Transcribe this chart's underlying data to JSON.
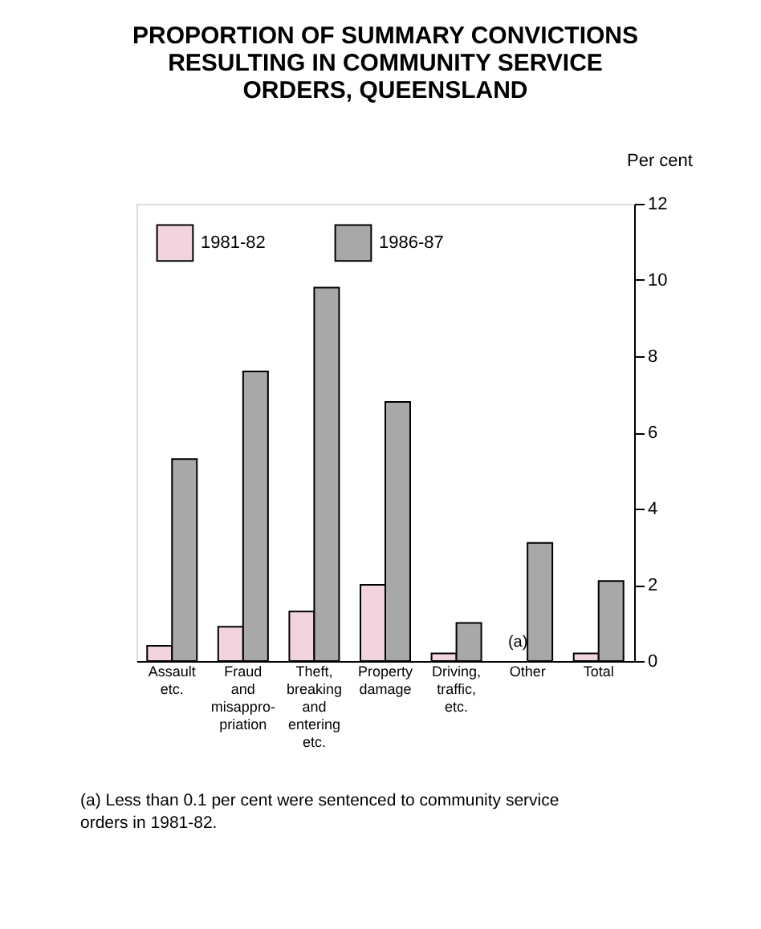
{
  "chart_data": {
    "type": "bar",
    "title": "PROPORTION OF SUMMARY CONVICTIONS RESULTING IN COMMUNITY SERVICE ORDERS, QUEENSLAND",
    "ylabel": "Per cent",
    "categories": [
      "Assault etc.",
      "Fraud and misappro- priation",
      "Theft, breaking and entering etc.",
      "Property damage",
      "Driving, traffic, etc.",
      "Other",
      "Total"
    ],
    "series": [
      {
        "name": "1981-82",
        "color": "#f2d4dc",
        "values": [
          0.4,
          0.9,
          1.3,
          2.0,
          0.2,
          null,
          0.2
        ]
      },
      {
        "name": "1986-87",
        "color": "#a8a8a8",
        "values": [
          5.3,
          7.6,
          9.8,
          6.8,
          1.0,
          3.1,
          2.1
        ]
      }
    ],
    "ylim": [
      0,
      12
    ],
    "yticks": [
      0,
      2,
      4,
      6,
      8,
      10,
      12
    ],
    "grid": false,
    "legend": "top left",
    "annotations": [
      {
        "text": "(a)",
        "x": "Other",
        "y": 0.3
      },
      "(a) Less than 0.1 per cent were sentenced to community service orders in 1981-82."
    ]
  }
}
